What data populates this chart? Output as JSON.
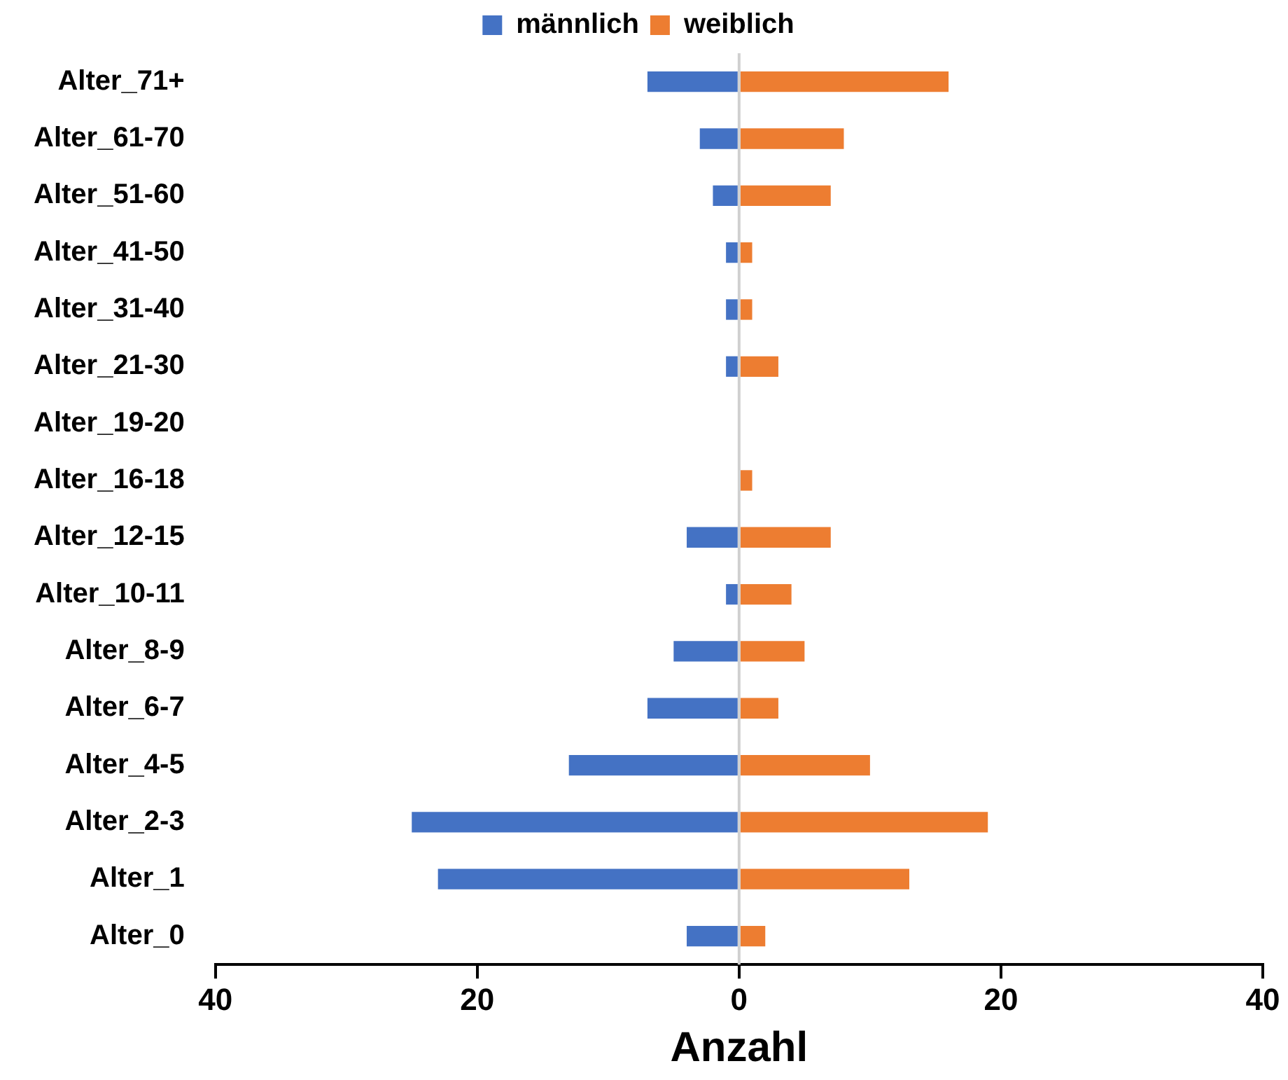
{
  "chart_data": {
    "type": "bar",
    "orientation": "horizontal",
    "stacked": true,
    "categories": [
      "Alter_71+",
      "Alter_61-70",
      "Alter_51-60",
      "Alter_41-50",
      "Alter_31-40",
      "Alter_21-30",
      "Alter_19-20",
      "Alter_16-18",
      "Alter_12-15",
      "Alter_10-11",
      "Alter_8-9",
      "Alter_6-7",
      "Alter_4-5",
      "Alter_2-3",
      "Alter_1",
      "Alter_0"
    ],
    "series": [
      {
        "name": "männlich",
        "color": "#4472c4",
        "values": [
          -7,
          -3,
          -2,
          -1,
          -1,
          -1,
          0,
          0,
          -4,
          -1,
          -5,
          -7,
          -13,
          -25,
          -23,
          -4
        ]
      },
      {
        "name": "weiblich",
        "color": "#ed7d31",
        "values": [
          16,
          8,
          7,
          1,
          1,
          3,
          0,
          1,
          7,
          4,
          5,
          3,
          10,
          19,
          13,
          2
        ]
      }
    ],
    "xlabel": "Anzahl",
    "xlim": [
      -40,
      40
    ],
    "xticks": [
      {
        "value": -40,
        "label": "40"
      },
      {
        "value": -20,
        "label": "20"
      },
      0,
      20,
      40
    ],
    "legend": "top"
  }
}
